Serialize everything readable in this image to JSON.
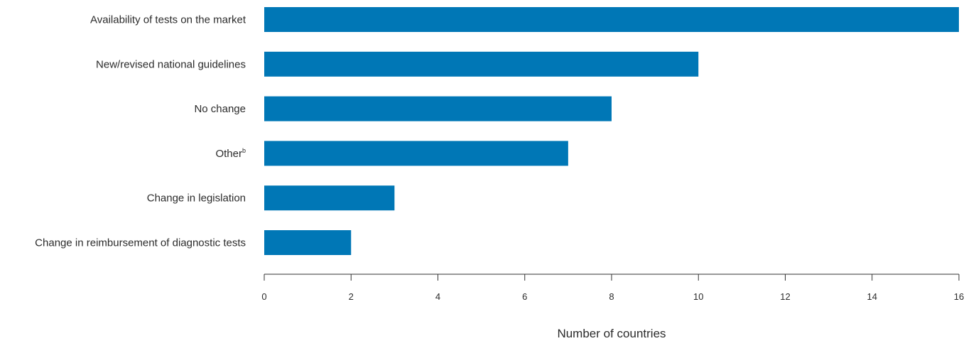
{
  "chart_data": {
    "type": "bar",
    "orientation": "horizontal",
    "categories": [
      "Availability of tests on the market",
      "New/revised national guidelines",
      "No change",
      "Other",
      "Change in legislation",
      "Change in reimbursement of diagnostic tests"
    ],
    "category_superscripts": [
      "",
      "",
      "",
      "b",
      "",
      ""
    ],
    "values": [
      16,
      10,
      8,
      7,
      3,
      2
    ],
    "xlabel": "Number of countries",
    "ylabel": "",
    "xlim": [
      0,
      16
    ],
    "xticks": [
      "0",
      "2",
      "4",
      "6",
      "8",
      "10",
      "12",
      "14",
      "16"
    ],
    "grid": false,
    "bar_color": "#0077b6"
  }
}
